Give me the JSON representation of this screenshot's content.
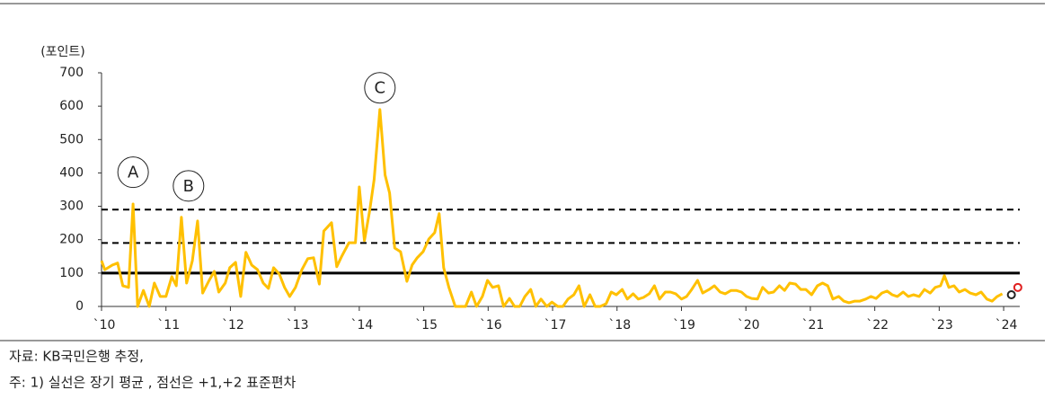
{
  "chart_data": {
    "type": "line",
    "y_unit_label": "(포인트)",
    "xlim": [
      2010,
      2024.25
    ],
    "ylim": [
      0,
      700
    ],
    "yticks": [
      0,
      100,
      200,
      300,
      400,
      500,
      600,
      700
    ],
    "xticks": [
      {
        "value": 2010,
        "label": "`10"
      },
      {
        "value": 2011,
        "label": "`11"
      },
      {
        "value": 2012,
        "label": "`12"
      },
      {
        "value": 2013,
        "label": "`13"
      },
      {
        "value": 2014,
        "label": "`14"
      },
      {
        "value": 2015,
        "label": "`15"
      },
      {
        "value": 2016,
        "label": "`16"
      },
      {
        "value": 2017,
        "label": "`17"
      },
      {
        "value": 2018,
        "label": "`18"
      },
      {
        "value": 2019,
        "label": "`19"
      },
      {
        "value": 2020,
        "label": "`20"
      },
      {
        "value": 2021,
        "label": "`21"
      },
      {
        "value": 2022,
        "label": "`22"
      },
      {
        "value": 2023,
        "label": "`23"
      },
      {
        "value": 2024,
        "label": "`24"
      }
    ],
    "series": [
      {
        "color": "#ffc000",
        "x": [
          2010.0,
          2010.05,
          2010.17,
          2010.25,
          2010.33,
          2010.42,
          2010.49,
          2010.56,
          2010.65,
          2010.74,
          2010.82,
          2010.91,
          2011.0,
          2011.09,
          2011.16,
          2011.24,
          2011.32,
          2011.41,
          2011.49,
          2011.57,
          2011.67,
          2011.75,
          2011.82,
          2011.92,
          2011.99,
          2012.08,
          2012.16,
          2012.24,
          2012.33,
          2012.42,
          2012.51,
          2012.59,
          2012.67,
          2012.76,
          2012.84,
          2012.92,
          2013.01,
          2013.11,
          2013.2,
          2013.29,
          2013.38,
          2013.45,
          2013.57,
          2013.65,
          2013.73,
          2013.84,
          2013.94,
          2014.0,
          2014.08,
          2014.16,
          2014.23,
          2014.32,
          2014.4,
          2014.47,
          2014.55,
          2014.64,
          2014.74,
          2014.82,
          2014.9,
          2014.99,
          2015.08,
          2015.17,
          2015.24,
          2015.31,
          2015.39,
          2015.49,
          2015.58,
          2015.65,
          2015.74,
          2015.82,
          2015.91,
          2015.99,
          2016.07,
          2016.16,
          2016.24,
          2016.33,
          2016.41,
          2016.49,
          2016.57,
          2016.66,
          2016.74,
          2016.82,
          2016.91,
          2016.99,
          2017.08,
          2017.16,
          2017.24,
          2017.33,
          2017.41,
          2017.49,
          2017.58,
          2017.66,
          2017.74,
          2017.83,
          2017.91,
          2017.99,
          2018.08,
          2018.16,
          2018.25,
          2018.33,
          2018.41,
          2018.5,
          2018.58,
          2018.66,
          2018.75,
          2018.83,
          2018.91,
          2019.0,
          2019.08,
          2019.16,
          2019.25,
          2019.33,
          2019.43,
          2019.51,
          2019.6,
          2019.68,
          2019.77,
          2019.85,
          2019.93,
          2020.01,
          2020.09,
          2020.18,
          2020.26,
          2020.35,
          2020.43,
          2020.52,
          2020.6,
          2020.68,
          2020.77,
          2020.85,
          2020.93,
          2021.02,
          2021.11,
          2021.19,
          2021.27,
          2021.35,
          2021.44,
          2021.52,
          2021.6,
          2021.69,
          2021.77,
          2021.86,
          2021.94,
          2022.02,
          2022.11,
          2022.19,
          2022.27,
          2022.35,
          2022.44,
          2022.52,
          2022.6,
          2022.69,
          2022.77,
          2022.86,
          2022.94,
          2023.02,
          2023.08,
          2023.15,
          2023.23,
          2023.31,
          2023.4,
          2023.48,
          2023.57,
          2023.65,
          2023.74,
          2023.82,
          2023.9,
          2023.98
        ],
        "values": [
          137,
          110,
          124,
          130,
          62,
          57,
          307,
          0,
          48,
          0,
          70,
          30,
          30,
          89,
          62,
          267,
          70,
          137,
          256,
          40,
          78,
          105,
          43,
          70,
          116,
          132,
          30,
          162,
          124,
          110,
          70,
          54,
          116,
          97,
          57,
          30,
          57,
          110,
          143,
          146,
          67,
          226,
          251,
          119,
          151,
          191,
          191,
          358,
          197,
          286,
          380,
          590,
          394,
          340,
          175,
          164,
          75,
          124,
          146,
          164,
          202,
          221,
          278,
          116,
          57,
          0,
          0,
          0,
          43,
          0,
          30,
          78,
          57,
          62,
          0,
          24,
          0,
          0,
          30,
          51,
          0,
          22,
          0,
          13,
          0,
          0,
          22,
          35,
          62,
          0,
          35,
          0,
          0,
          8,
          43,
          35,
          51,
          22,
          38,
          22,
          27,
          38,
          62,
          22,
          43,
          43,
          38,
          22,
          30,
          51,
          78,
          40,
          51,
          62,
          43,
          38,
          48,
          48,
          43,
          30,
          24,
          22,
          57,
          40,
          43,
          62,
          48,
          70,
          67,
          51,
          51,
          35,
          62,
          70,
          62,
          22,
          30,
          16,
          11,
          16,
          16,
          22,
          30,
          24,
          40,
          46,
          35,
          30,
          43,
          30,
          35,
          30,
          51,
          40,
          57,
          62,
          92,
          57,
          62,
          43,
          51,
          40,
          35,
          43,
          22,
          16,
          30,
          38
        ]
      }
    ],
    "markers": [
      {
        "x": 2024.12,
        "value": 35,
        "color": "#222222"
      },
      {
        "x": 2024.22,
        "value": 57,
        "color": "#e02020"
      }
    ],
    "reference_lines": [
      {
        "value": 100,
        "style": "solid"
      },
      {
        "value": 190,
        "style": "dashed"
      },
      {
        "value": 290,
        "style": "dashed"
      }
    ],
    "annotations": [
      {
        "text": "A",
        "x": 2010.49,
        "y": 402
      },
      {
        "text": "B",
        "x": 2011.35,
        "y": 361
      },
      {
        "text": "C",
        "x": 2014.32,
        "y": 655
      }
    ]
  },
  "footnotes": [
    "자료: KB국민은행 추정,",
    "주: 1) 실선은 장기 평균 , 점선은 +1,+2 표준편차"
  ]
}
